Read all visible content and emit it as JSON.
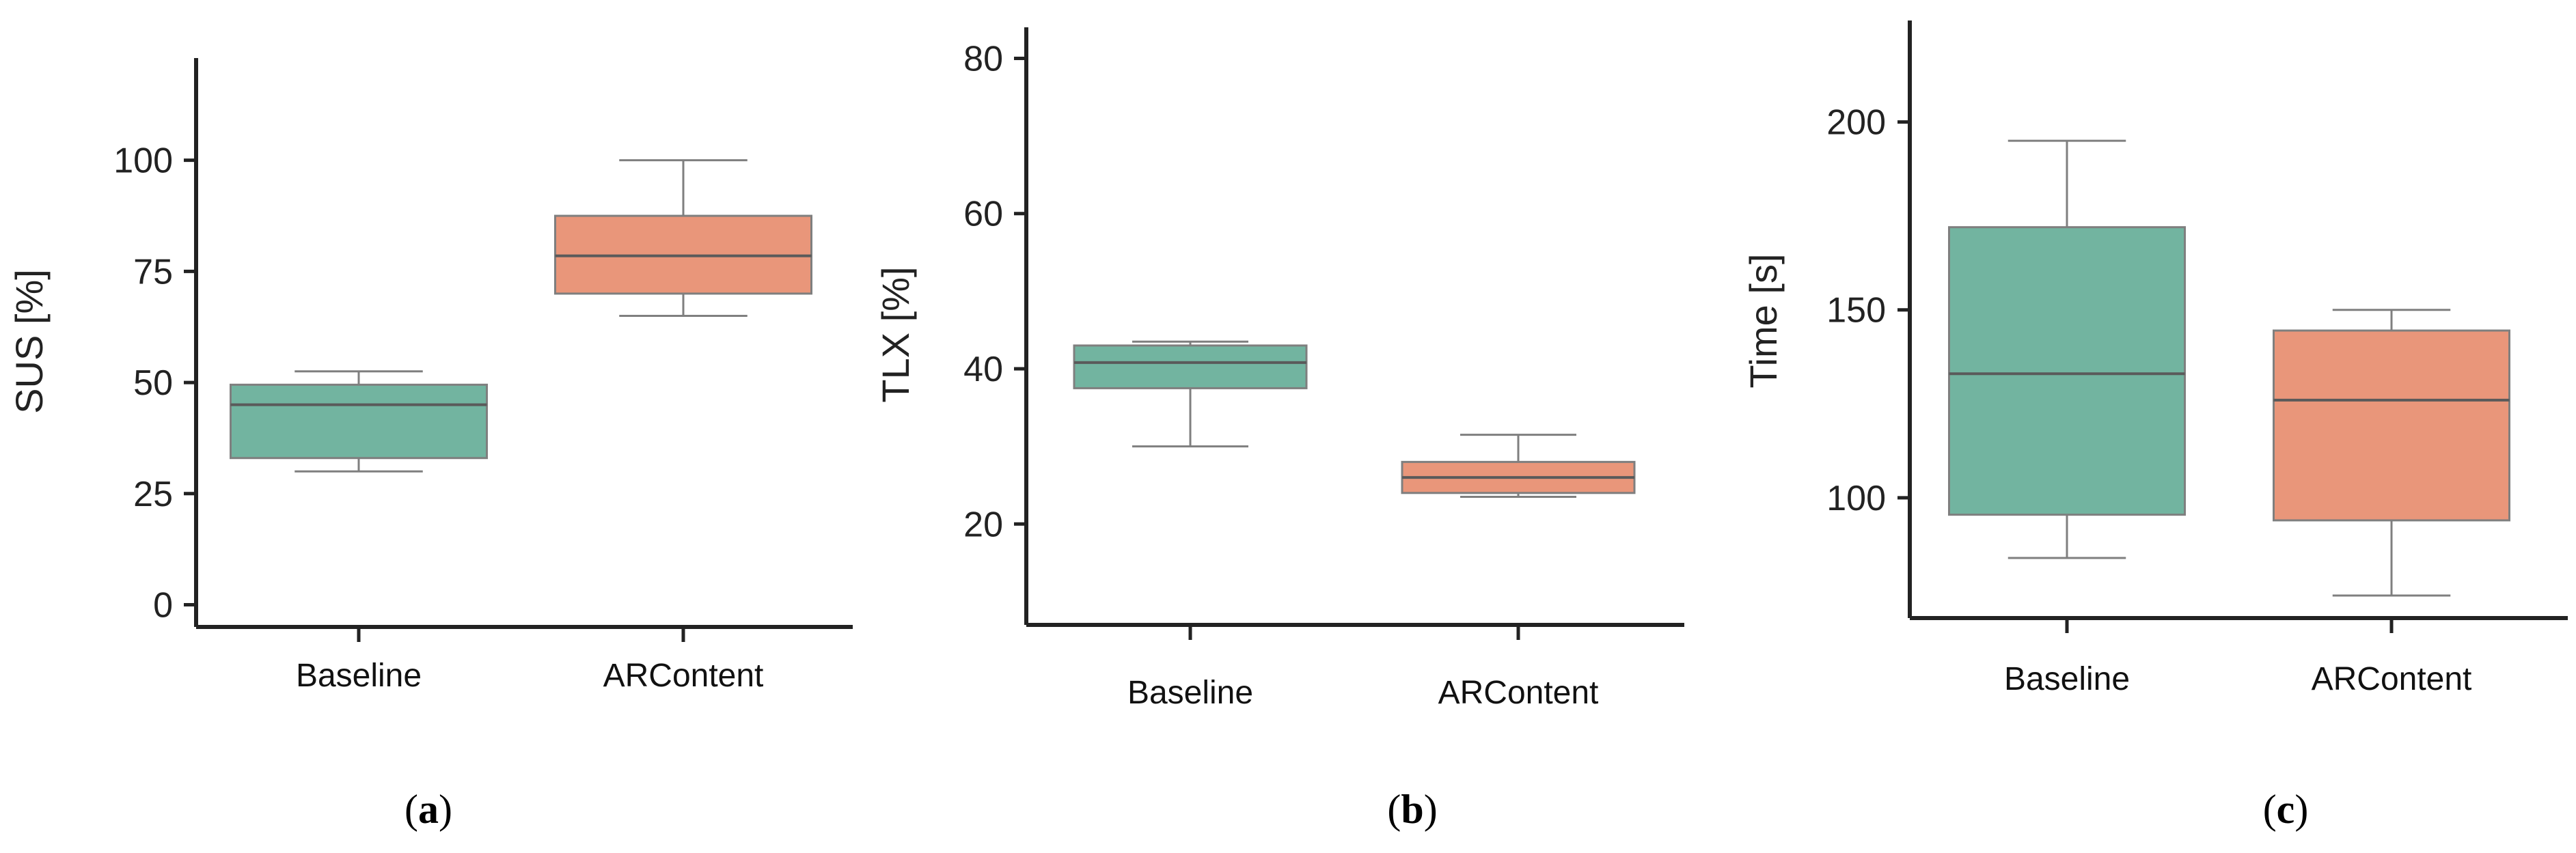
{
  "chart_data": [
    {
      "type": "box",
      "panel": "(a)",
      "panel_letter": "a",
      "ylabel": "SUS [%]",
      "ylim": [
        -5,
        123
      ],
      "yticks": [
        0,
        25,
        50,
        75,
        100
      ],
      "categories": [
        "Baseline",
        "ARContent"
      ],
      "boxes": [
        {
          "category": "Baseline",
          "whisker_low": 30,
          "q1": 33,
          "median": 45,
          "q3": 49.5,
          "whisker_high": 52.5,
          "color": "#72b4a0"
        },
        {
          "category": "ARContent",
          "whisker_low": 65,
          "q1": 70,
          "median": 78.5,
          "q3": 87.5,
          "whisker_high": 100,
          "color": "#e9967a"
        }
      ]
    },
    {
      "type": "box",
      "panel": "(b)",
      "panel_letter": "b",
      "ylabel": "TLX [%]",
      "ylim": [
        7,
        84
      ],
      "yticks": [
        20,
        40,
        60,
        80
      ],
      "categories": [
        "Baseline",
        "ARContent"
      ],
      "boxes": [
        {
          "category": "Baseline",
          "whisker_low": 30,
          "q1": 37.5,
          "median": 40.8,
          "q3": 43,
          "whisker_high": 43.5,
          "color": "#72b4a0"
        },
        {
          "category": "ARContent",
          "whisker_low": 23.5,
          "q1": 24,
          "median": 26,
          "q3": 28,
          "whisker_high": 31.5,
          "color": "#e9967a"
        }
      ]
    },
    {
      "type": "box",
      "panel": "(c)",
      "panel_letter": "c",
      "ylabel": "Time [s]",
      "ylim": [
        68,
        227
      ],
      "yticks": [
        100,
        150,
        200
      ],
      "categories": [
        "Baseline",
        "ARContent"
      ],
      "boxes": [
        {
          "category": "Baseline",
          "whisker_low": 84,
          "q1": 95.5,
          "median": 133,
          "q3": 172,
          "whisker_high": 195,
          "color": "#72b4a0"
        },
        {
          "category": "ARContent",
          "whisker_low": 74,
          "q1": 94,
          "median": 126,
          "q3": 144.5,
          "whisker_high": 150,
          "color": "#e9967a"
        }
      ]
    }
  ]
}
